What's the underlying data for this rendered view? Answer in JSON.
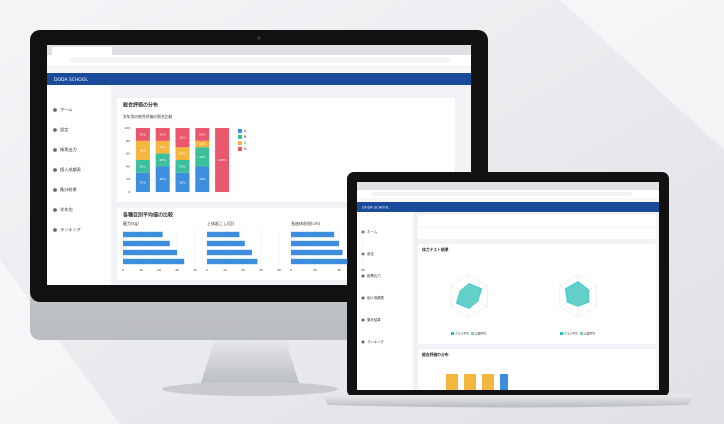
{
  "monitor": {
    "app_title": "DODA SCHOOL",
    "sidebar": [
      "ホーム",
      "設定",
      "帳票出力",
      "個人成績表",
      "集計結果",
      "学年別",
      "ランキング"
    ],
    "card_title": "各種目別平均値の比較",
    "chart_data": [
      {
        "type": "stacked-bar",
        "title": "総合評価の分布",
        "subtitle": "学年別の総合評価の割合比較",
        "ylim": [
          0,
          100
        ],
        "yticks": [
          0,
          20,
          40,
          60,
          80,
          100
        ],
        "grid": true,
        "series": [
          {
            "name": "A",
            "color": "#3d8fde",
            "values": [
              30,
              40,
              30,
              40,
              0
            ],
            "value_labels": [
              "30%",
              "40%",
              "30%",
              "40%",
              null
            ]
          },
          {
            "name": "B",
            "color": "#3cbf9a",
            "values": [
              20,
              20,
              20,
              30,
              0
            ],
            "value_labels": [
              "20%",
              "20%",
              "20%",
              "30%",
              null
            ]
          },
          {
            "name": "C",
            "color": "#f4b63f",
            "values": [
              30,
              20,
              20,
              10,
              0
            ],
            "value_labels": [
              "30%",
              "20%",
              "20%",
              "10%",
              null
            ]
          },
          {
            "name": "D",
            "color": "#e9586c",
            "values": [
              20,
              20,
              30,
              20,
              100
            ],
            "value_labels": [
              "20%",
              "20%",
              "30%",
              "20%",
              "100%"
            ]
          }
        ]
      },
      {
        "type": "hbar",
        "title": "握力(kg)",
        "xlim": [
          0,
          40
        ],
        "xticks": [
          0,
          10,
          20,
          30,
          40
        ],
        "color": "#3d8fde",
        "values": [
          22,
          26,
          30,
          34
        ]
      },
      {
        "type": "hbar",
        "title": "上体起こし(回)",
        "xlim": [
          0,
          40
        ],
        "xticks": [
          0,
          10,
          20,
          30,
          40
        ],
        "color": "#3d8fde",
        "values": [
          18,
          21,
          25,
          28
        ]
      },
      {
        "type": "hbar",
        "title": "長座体前屈(cm)",
        "xlim": [
          0,
          60
        ],
        "xticks": [
          0,
          20,
          40,
          60
        ],
        "color": "#3d8fde",
        "values": [
          36,
          40,
          43,
          47
        ]
      }
    ]
  },
  "laptop": {
    "app_title": "DODA SCHOOL",
    "sidebar": [
      "ホーム",
      "設定",
      "帳票出力",
      "個人成績表",
      "集計結果",
      "ランキング"
    ],
    "bottom_title": "総合評価の分布",
    "chart_data": [
      {
        "type": "radar",
        "title": "体力テスト結果",
        "ylim": [
          0,
          10
        ],
        "yticks": [
          0,
          5,
          10
        ],
        "series": [
          {
            "name": "クラス平均",
            "color": "#22bfc9",
            "values": [
              6,
              7,
              5,
              6,
              7,
              5
            ]
          },
          {
            "name": "全国平均",
            "color": "#7dd3a6",
            "values": [
              5,
              5,
              5,
              5,
              5,
              5
            ]
          }
        ]
      },
      {
        "type": "radar",
        "ylim": [
          0,
          10
        ],
        "yticks": [
          0,
          5,
          10
        ],
        "series": [
          {
            "name": "クラス平均",
            "color": "#22bfc9",
            "values": [
              7,
              6,
              6,
              5,
              6,
              7
            ]
          },
          {
            "name": "全国平均",
            "color": "#7dd3a6",
            "values": [
              5,
              5,
              5,
              5,
              5,
              5
            ]
          }
        ]
      }
    ]
  }
}
